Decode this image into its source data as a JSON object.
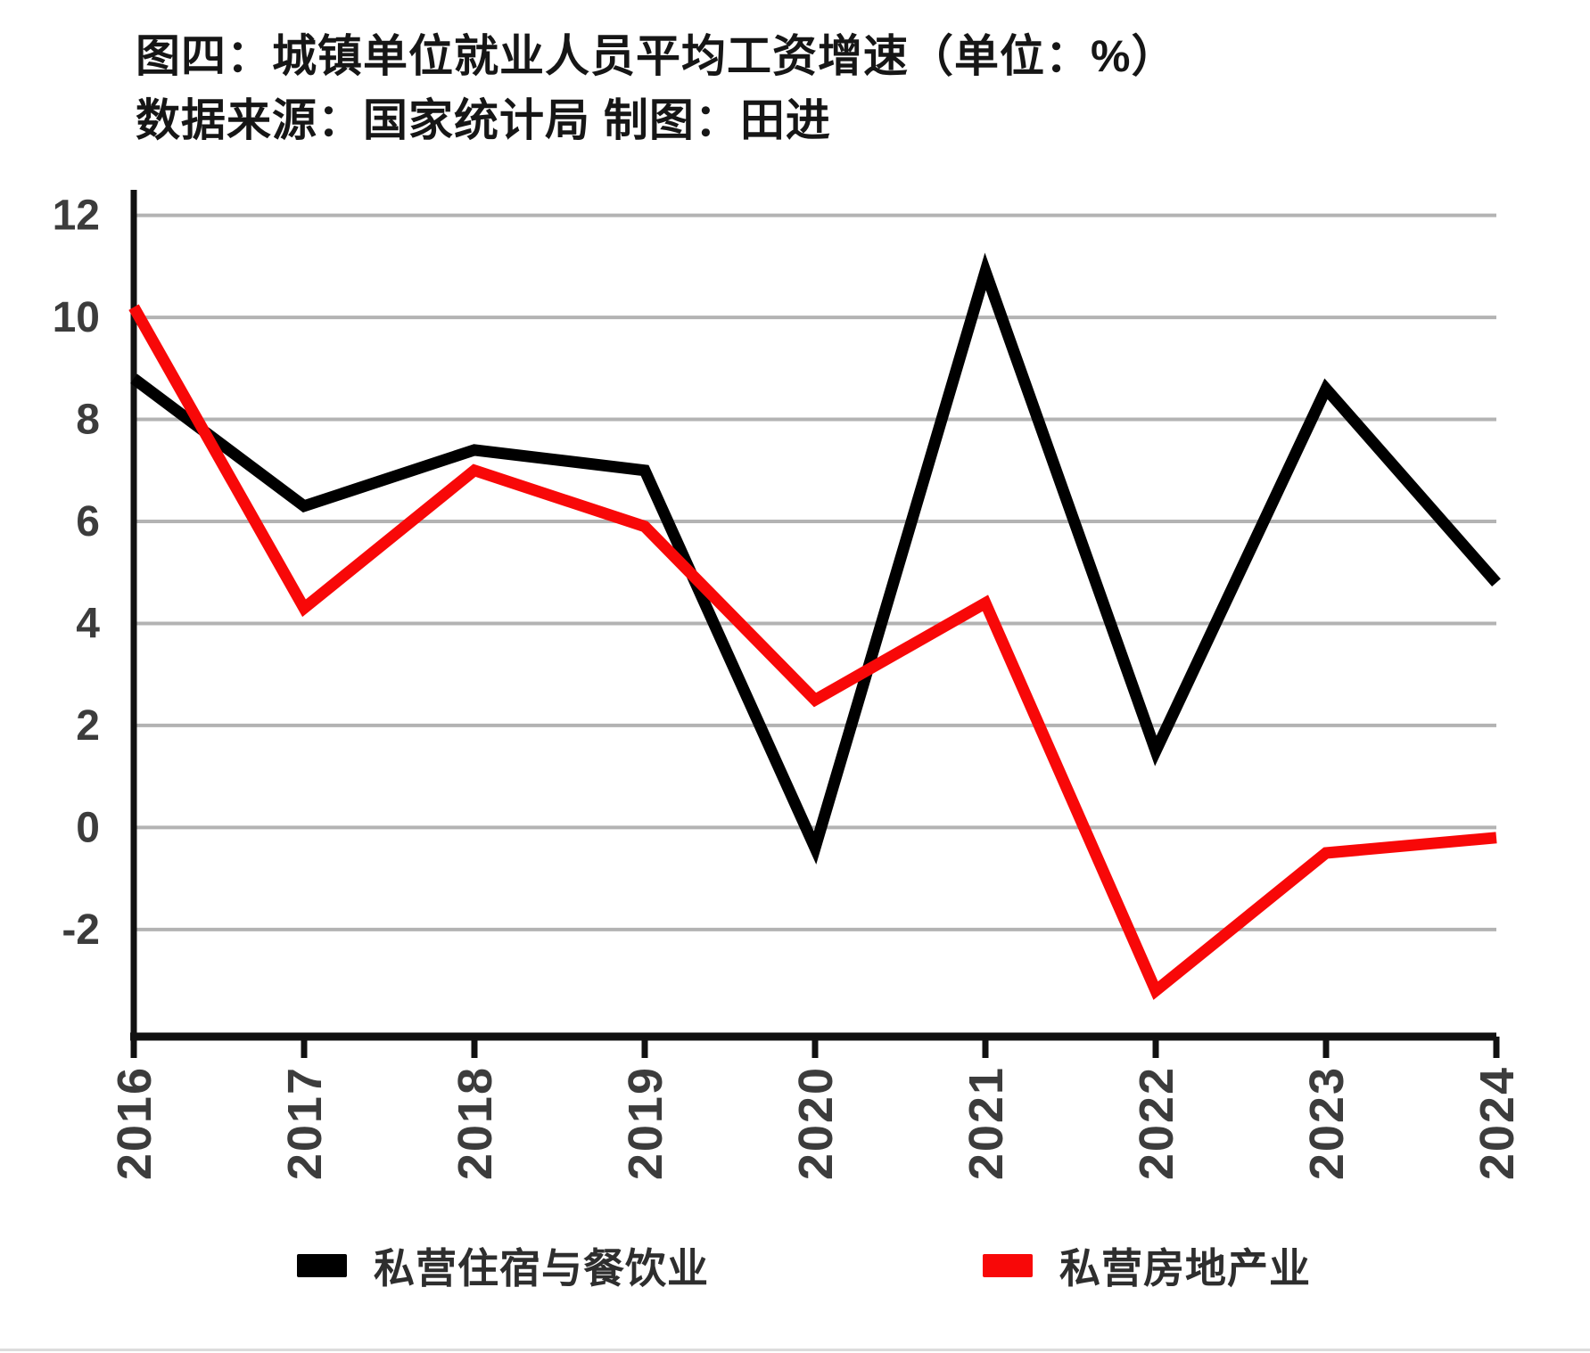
{
  "title": "图四：城镇单位就业人员平均工资增速（单位：%）",
  "subtitle": "数据来源：国家统计局 制图：田进",
  "chart_data": {
    "type": "line",
    "title": "图四：城镇单位就业人员平均工资增速（单位：%）",
    "source_note": "数据来源：国家统计局 制图：田进",
    "x_categories": [
      "2016",
      "2017",
      "2018",
      "2019",
      "2020",
      "2021",
      "2022",
      "2023",
      "2024"
    ],
    "series": [
      {
        "name": "私营住宿与餐饮业",
        "color": "#000000",
        "values": [
          8.8,
          6.3,
          7.4,
          7.0,
          -0.4,
          10.9,
          1.5,
          8.6,
          4.8
        ]
      },
      {
        "name": "私营房地产业",
        "color": "#f80808",
        "values": [
          10.2,
          4.3,
          7.0,
          5.9,
          2.5,
          4.4,
          -3.2,
          -0.5,
          -0.2
        ]
      }
    ],
    "ylim": [
      -4.1,
      12.5
    ],
    "yticks": [
      12,
      10,
      8,
      6,
      4,
      2,
      0,
      -2
    ],
    "grid": true,
    "gridline_color": "#b3b3b3",
    "axis_color": "#111111",
    "tick_label_color": "#3c3c3c",
    "line_width": 13,
    "legend_position": "bottom",
    "unit": "%"
  }
}
